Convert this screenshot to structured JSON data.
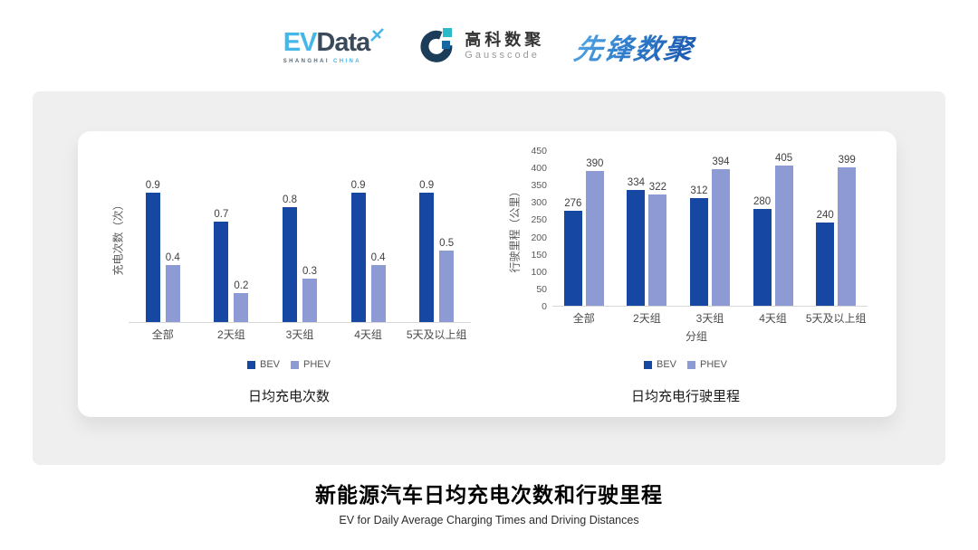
{
  "header": {
    "evdata": {
      "ev": "EV",
      "data": "Data",
      "sub_left": "SHANGHAI",
      "sub_right": "CHINA"
    },
    "gausscode": {
      "cn": "高科数聚",
      "en": "Gausscode"
    },
    "pioneer": {
      "text": "先锋数聚"
    }
  },
  "colors": {
    "bev": "#1647A3",
    "phev": "#8E9AD3",
    "panel_bg": "#EFEFEF",
    "card_bg": "#FFFFFF",
    "baseline": "#D8D8D8",
    "evdata_blue": "#45B6E8",
    "evdata_dark": "#3B4A5A",
    "gauss_dark": "#1C3D5A",
    "gauss_teal": "#2BBAC9",
    "gauss_blue": "#1467A0",
    "pioneer_blue": "#1A57B0"
  },
  "chart_data": [
    {
      "type": "bar",
      "title": "日均充电次数",
      "ylabel": "充电次数（次）",
      "xlabel": "",
      "categories": [
        "全部",
        "2天组",
        "3天组",
        "4天组",
        "5天及以上组"
      ],
      "series": [
        {
          "name": "BEV",
          "values": [
            0.9,
            0.7,
            0.8,
            0.9,
            0.9
          ]
        },
        {
          "name": "PHEV",
          "values": [
            0.4,
            0.2,
            0.3,
            0.4,
            0.5
          ]
        }
      ],
      "ylim": [
        0,
        1.2
      ],
      "yticks": [],
      "grid": false,
      "legend_position": "bottom"
    },
    {
      "type": "bar",
      "title": "日均充电行驶里程",
      "ylabel": "行驶里程（公里）",
      "xlabel": "分组",
      "categories": [
        "全部",
        "2天组",
        "3天组",
        "4天组",
        "5天及以上组"
      ],
      "series": [
        {
          "name": "BEV",
          "values": [
            276,
            334,
            312,
            280,
            240
          ]
        },
        {
          "name": "PHEV",
          "values": [
            390,
            322,
            394,
            405,
            399
          ]
        }
      ],
      "ylim": [
        0,
        450
      ],
      "yticks": [
        0,
        50,
        100,
        150,
        200,
        250,
        300,
        350,
        400,
        450
      ],
      "grid": false,
      "legend_position": "bottom"
    }
  ],
  "footer": {
    "title": "新能源汽车日均充电次数和行驶里程",
    "subtitle": "EV for Daily Average Charging Times and Driving Distances"
  }
}
